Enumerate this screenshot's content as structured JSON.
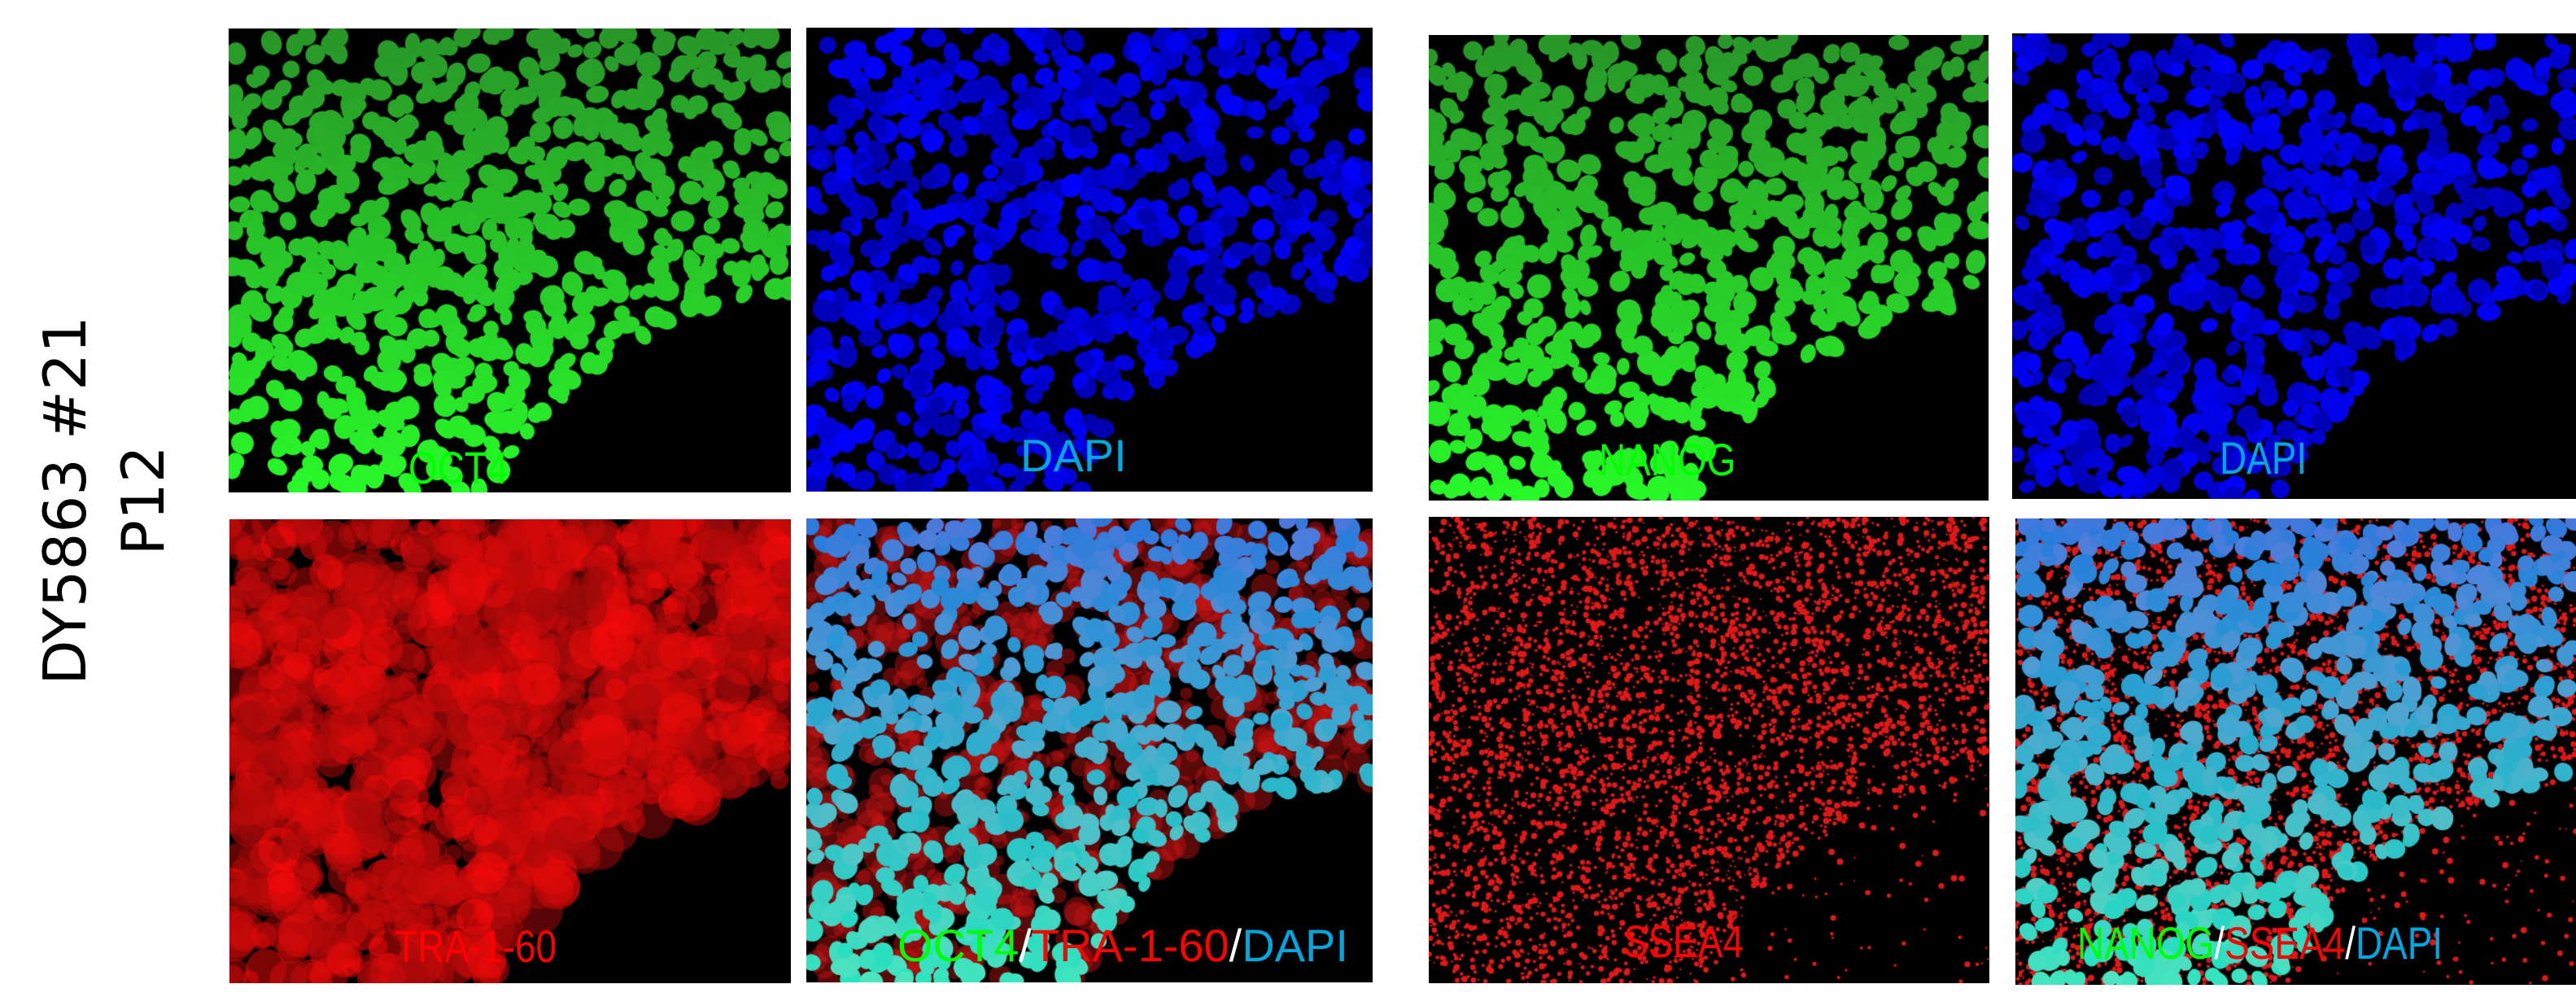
{
  "row_label": {
    "line1": "DY5863 #21",
    "line2": "P12"
  },
  "panels": [
    {
      "id": "oct4",
      "stain": "green",
      "label_parts": [
        {
          "text": "OCT4",
          "color": "#00ff00"
        }
      ]
    },
    {
      "id": "dapi-1",
      "stain": "blue",
      "label_parts": [
        {
          "text": "DAPI",
          "color": "#00a6e0"
        }
      ]
    },
    {
      "id": "nanog",
      "stain": "green",
      "label_parts": [
        {
          "text": "NANOG",
          "color": "#00ff00"
        }
      ]
    },
    {
      "id": "dapi-2",
      "stain": "blue",
      "label_parts": [
        {
          "text": "DAPI",
          "color": "#00a6e0"
        }
      ]
    },
    {
      "id": "tra-1-60",
      "stain": "red",
      "label_parts": [
        {
          "text": "TRA-1-60",
          "color": "#ff0000"
        }
      ]
    },
    {
      "id": "merge-1",
      "stain": "merge",
      "label_parts": [
        {
          "text": "OCT4",
          "color": "#00ff00"
        },
        {
          "text": "/",
          "color": "#ffffff"
        },
        {
          "text": "TRA-1-60",
          "color": "#ff0000"
        },
        {
          "text": "/",
          "color": "#ffffff"
        },
        {
          "text": "DAPI",
          "color": "#00a6e0"
        }
      ]
    },
    {
      "id": "ssea4",
      "stain": "red-dots",
      "label_parts": [
        {
          "text": "SSEA4",
          "color": "#ff0000"
        }
      ]
    },
    {
      "id": "merge-2",
      "stain": "merge-dots",
      "label_parts": [
        {
          "text": "NANOG",
          "color": "#00ff00"
        },
        {
          "text": "/",
          "color": "#ffffff"
        },
        {
          "text": "SSEA4",
          "color": "#ff0000"
        },
        {
          "text": "/",
          "color": "#ffffff"
        },
        {
          "text": "DAPI",
          "color": "#00a6e0"
        }
      ]
    }
  ]
}
